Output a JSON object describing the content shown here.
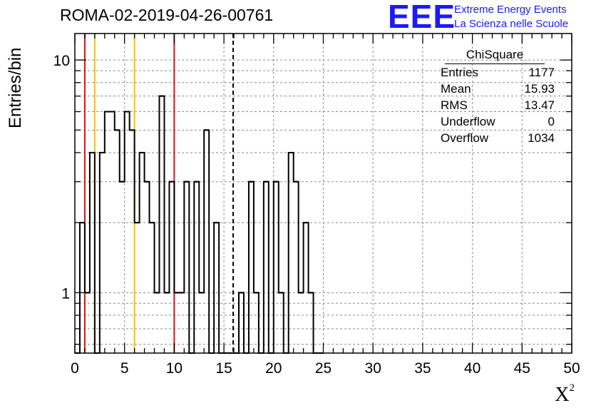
{
  "header": {
    "run_title": "ROMA-02-2019-04-26-00761"
  },
  "logo": {
    "mark": "EEE",
    "line1": "Extreme Energy Events",
    "line2": "La Scienza nelle Scuole",
    "color": "#1a1aff"
  },
  "axes": {
    "ylabel": "Entries/bin",
    "xlabel_base": "X",
    "xlabel_sup": "2"
  },
  "stats": {
    "title": "ChiSquare",
    "rows": [
      {
        "label": "Entries",
        "value": "1177"
      },
      {
        "label": "Mean",
        "value": "15.93"
      },
      {
        "label": "RMS",
        "value": "13.47"
      },
      {
        "label": "Underflow",
        "value": "0"
      },
      {
        "label": "Overflow",
        "value": "1034"
      }
    ]
  },
  "chart_data": {
    "type": "histogram",
    "bin_width": 1,
    "xlim": [
      0,
      50
    ],
    "ylim": [
      0.55,
      13
    ],
    "y_scale": "log",
    "grid": true,
    "x_ticks": [
      0,
      5,
      10,
      15,
      20,
      25,
      30,
      35,
      40,
      45,
      50
    ],
    "y_ticks": [
      1,
      10
    ],
    "bins": [
      {
        "x": 0.5,
        "y": 0
      },
      {
        "x": 1.0,
        "y": 2
      },
      {
        "x": 1.5,
        "y": 1
      },
      {
        "x": 2.0,
        "y": 4
      },
      {
        "x": 2.5,
        "y": 0
      },
      {
        "x": 3.0,
        "y": 4
      },
      {
        "x": 3.5,
        "y": 6
      },
      {
        "x": 4.0,
        "y": 6
      },
      {
        "x": 4.5,
        "y": 5
      },
      {
        "x": 5.0,
        "y": 3
      },
      {
        "x": 5.5,
        "y": 6
      },
      {
        "x": 6.0,
        "y": 5
      },
      {
        "x": 6.5,
        "y": 2
      },
      {
        "x": 7.0,
        "y": 4
      },
      {
        "x": 7.5,
        "y": 3
      },
      {
        "x": 8.0,
        "y": 2
      },
      {
        "x": 8.5,
        "y": 1
      },
      {
        "x": 9.0,
        "y": 7
      },
      {
        "x": 9.5,
        "y": 1
      },
      {
        "x": 10.0,
        "y": 3
      },
      {
        "x": 10.5,
        "y": 1
      },
      {
        "x": 11.0,
        "y": 1
      },
      {
        "x": 11.5,
        "y": 3
      },
      {
        "x": 12.0,
        "y": 0
      },
      {
        "x": 12.5,
        "y": 3
      },
      {
        "x": 13.0,
        "y": 1
      },
      {
        "x": 13.5,
        "y": 5
      },
      {
        "x": 14.0,
        "y": 0
      },
      {
        "x": 14.5,
        "y": 2
      },
      {
        "x": 15.0,
        "y": 0
      },
      {
        "x": 15.5,
        "y": 0
      },
      {
        "x": 16.0,
        "y": 0
      },
      {
        "x": 16.5,
        "y": 0
      },
      {
        "x": 17.0,
        "y": 1
      },
      {
        "x": 17.5,
        "y": 0
      },
      {
        "x": 18.0,
        "y": 3
      },
      {
        "x": 18.5,
        "y": 1
      },
      {
        "x": 19.0,
        "y": 0
      },
      {
        "x": 19.5,
        "y": 3
      },
      {
        "x": 20.0,
        "y": 0
      },
      {
        "x": 20.5,
        "y": 3
      },
      {
        "x": 21.0,
        "y": 1
      },
      {
        "x": 21.5,
        "y": 0
      },
      {
        "x": 22.0,
        "y": 4
      },
      {
        "x": 22.5,
        "y": 3
      },
      {
        "x": 23.0,
        "y": 1
      },
      {
        "x": 23.5,
        "y": 2
      },
      {
        "x": 24.0,
        "y": 1
      },
      {
        "x": 24.5,
        "y": 0
      },
      {
        "x": 25.0,
        "y": 0
      }
    ],
    "reference_lines": [
      {
        "x": 1,
        "color": "#dd1111",
        "style": "solid"
      },
      {
        "x": 2,
        "color": "#f2c200",
        "style": "solid"
      },
      {
        "x": 6,
        "color": "#f2c200",
        "style": "solid"
      },
      {
        "x": 10,
        "color": "#dd1111",
        "style": "solid"
      },
      {
        "x": 15.93,
        "color": "#000000",
        "style": "dashed"
      }
    ]
  }
}
